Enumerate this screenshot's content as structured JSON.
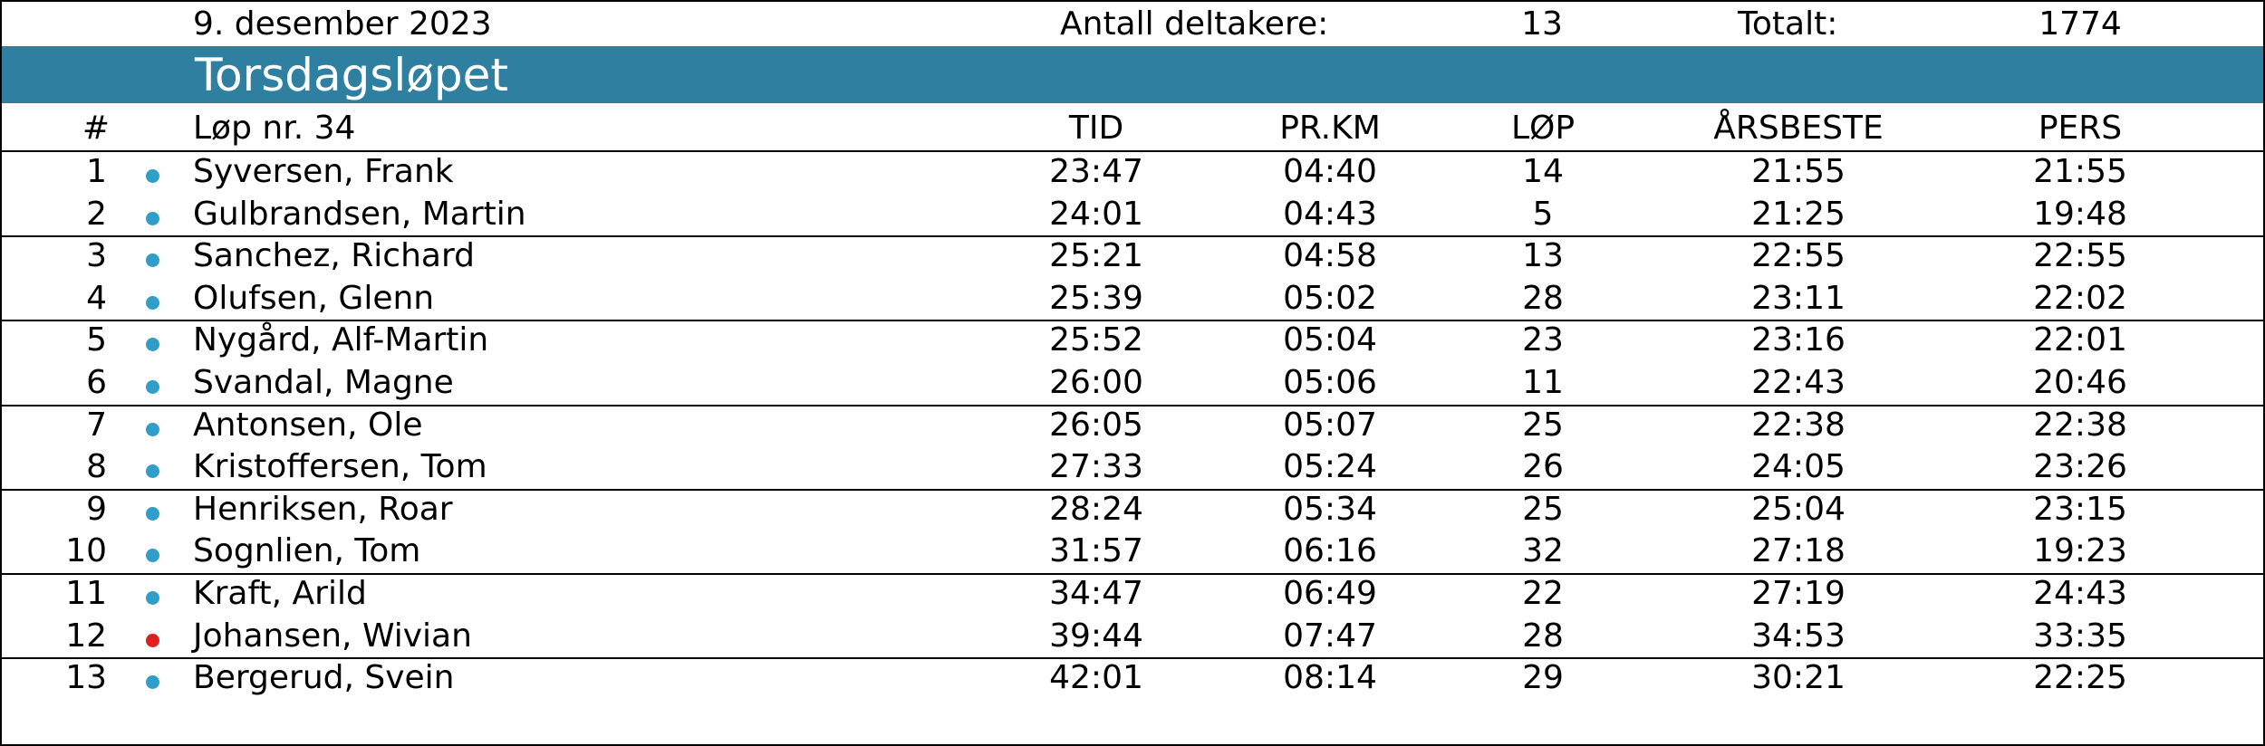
{
  "header": {
    "date": "9. desember 2023",
    "participants_label": "Antall deltakere:",
    "participants_count": "13",
    "total_label": "Totalt:",
    "total_value": "1774"
  },
  "title": "Torsdagsløpet",
  "columns": {
    "rank": "#",
    "name": "Løp nr. 34",
    "time": "TID",
    "per_km": "PR.KM",
    "runs": "LØP",
    "season_best": "ÅRSBESTE",
    "personal_best": "PERS"
  },
  "colors": {
    "band": "#2e7fa0",
    "dot_default": "#2f9ec9",
    "dot_female": "#e02020"
  },
  "rows": [
    {
      "rank": "1",
      "name": "Syversen, Frank",
      "time": "23:47",
      "per_km": "04:40",
      "runs": "14",
      "season_best": "21:55",
      "personal_best": "21:55",
      "dot": "blue"
    },
    {
      "rank": "2",
      "name": "Gulbrandsen, Martin",
      "time": "24:01",
      "per_km": "04:43",
      "runs": "5",
      "season_best": "21:25",
      "personal_best": "19:48",
      "dot": "blue"
    },
    {
      "rank": "3",
      "name": "Sanchez, Richard",
      "time": "25:21",
      "per_km": "04:58",
      "runs": "13",
      "season_best": "22:55",
      "personal_best": "22:55",
      "dot": "blue"
    },
    {
      "rank": "4",
      "name": "Olufsen, Glenn",
      "time": "25:39",
      "per_km": "05:02",
      "runs": "28",
      "season_best": "23:11",
      "personal_best": "22:02",
      "dot": "blue"
    },
    {
      "rank": "5",
      "name": "Nygård, Alf-Martin",
      "time": "25:52",
      "per_km": "05:04",
      "runs": "23",
      "season_best": "23:16",
      "personal_best": "22:01",
      "dot": "blue"
    },
    {
      "rank": "6",
      "name": "Svandal, Magne",
      "time": "26:00",
      "per_km": "05:06",
      "runs": "11",
      "season_best": "22:43",
      "personal_best": "20:46",
      "dot": "blue"
    },
    {
      "rank": "7",
      "name": "Antonsen, Ole",
      "time": "26:05",
      "per_km": "05:07",
      "runs": "25",
      "season_best": "22:38",
      "personal_best": "22:38",
      "dot": "blue"
    },
    {
      "rank": "8",
      "name": "Kristoffersen, Tom",
      "time": "27:33",
      "per_km": "05:24",
      "runs": "26",
      "season_best": "24:05",
      "personal_best": "23:26",
      "dot": "blue"
    },
    {
      "rank": "9",
      "name": "Henriksen, Roar",
      "time": "28:24",
      "per_km": "05:34",
      "runs": "25",
      "season_best": "25:04",
      "personal_best": "23:15",
      "dot": "blue"
    },
    {
      "rank": "10",
      "name": "Sognlien, Tom",
      "time": "31:57",
      "per_km": "06:16",
      "runs": "32",
      "season_best": "27:18",
      "personal_best": "19:23",
      "dot": "blue"
    },
    {
      "rank": "11",
      "name": "Kraft, Arild",
      "time": "34:47",
      "per_km": "06:49",
      "runs": "22",
      "season_best": "27:19",
      "personal_best": "24:43",
      "dot": "blue"
    },
    {
      "rank": "12",
      "name": "Johansen, Wivian",
      "time": "39:44",
      "per_km": "07:47",
      "runs": "28",
      "season_best": "34:53",
      "personal_best": "33:35",
      "dot": "red"
    },
    {
      "rank": "13",
      "name": "Bergerud, Svein",
      "time": "42:01",
      "per_km": "08:14",
      "runs": "29",
      "season_best": "30:21",
      "personal_best": "22:25",
      "dot": "blue"
    }
  ]
}
